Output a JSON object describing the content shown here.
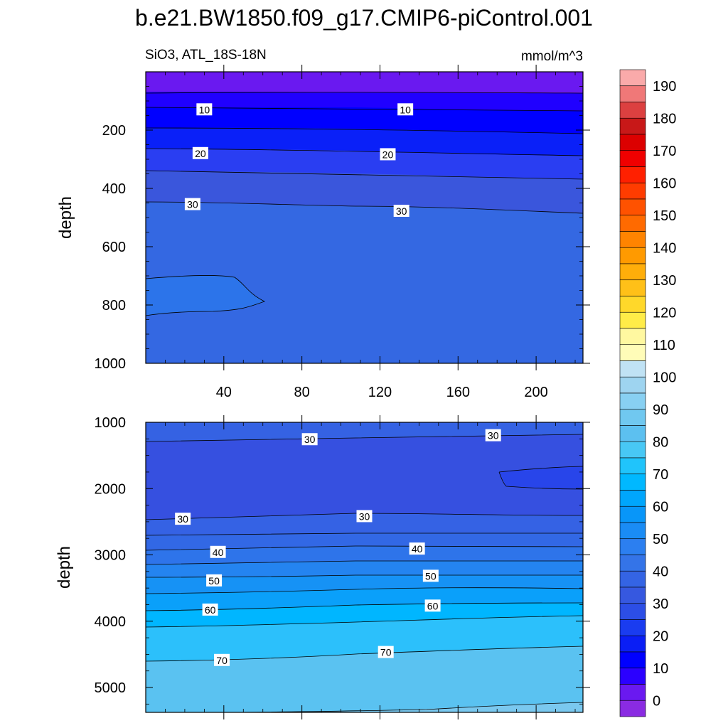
{
  "title": "b.e21.BW1850.f09_g17.CMIP6-piControl.001",
  "chart_data": [
    {
      "type": "contour",
      "panel": "upper",
      "left_label": "SiO3, ATL_18S-18N",
      "right_label": "mmol/m^3",
      "xlabel": "",
      "ylabel": "depth",
      "xlim": [
        0,
        224
      ],
      "ylim": [
        0,
        1000
      ],
      "y_reversed": true,
      "x_ticks": [
        40,
        80,
        120,
        160,
        200
      ],
      "x_tick_labels": [
        "40",
        "80",
        "120",
        "160",
        "200"
      ],
      "y_ticks": [
        200,
        400,
        600,
        800,
        1000
      ],
      "y_tick_labels": [
        "200",
        "400",
        "600",
        "800",
        "1000"
      ],
      "contour_labels": [
        {
          "text": "10",
          "x": 30,
          "y": 130
        },
        {
          "text": "10",
          "x": 133,
          "y": 130
        },
        {
          "text": "20",
          "x": 28,
          "y": 280
        },
        {
          "text": "20",
          "x": 124,
          "y": 284
        },
        {
          "text": "30",
          "x": 24,
          "y": 455
        },
        {
          "text": "30",
          "x": 131,
          "y": 478
        }
      ]
    },
    {
      "type": "contour",
      "panel": "lower",
      "xlabel": "",
      "ylabel": "depth",
      "xlim": [
        0,
        224
      ],
      "ylim": [
        1000,
        5375
      ],
      "y_reversed": true,
      "y_ticks": [
        1000,
        2000,
        3000,
        4000,
        5000
      ],
      "y_tick_labels": [
        "1000",
        "2000",
        "3000",
        "4000",
        "5000"
      ],
      "contour_labels": [
        {
          "text": "30",
          "x": 84,
          "y": 1260
        },
        {
          "text": "30",
          "x": 178,
          "y": 1200
        },
        {
          "text": "30",
          "x": 19,
          "y": 2460
        },
        {
          "text": "30",
          "x": 112,
          "y": 2420
        },
        {
          "text": "40",
          "x": 37,
          "y": 2960
        },
        {
          "text": "40",
          "x": 139,
          "y": 2910
        },
        {
          "text": "50",
          "x": 35,
          "y": 3390
        },
        {
          "text": "50",
          "x": 146,
          "y": 3320
        },
        {
          "text": "60",
          "x": 33,
          "y": 3830
        },
        {
          "text": "60",
          "x": 147,
          "y": 3770
        },
        {
          "text": "70",
          "x": 39,
          "y": 4590
        },
        {
          "text": "70",
          "x": 123,
          "y": 4470
        }
      ]
    }
  ],
  "colorbar": {
    "labels": [
      "0",
      "10",
      "20",
      "30",
      "40",
      "50",
      "60",
      "70",
      "80",
      "90",
      "100",
      "110",
      "120",
      "130",
      "140",
      "150",
      "160",
      "170",
      "180",
      "190"
    ],
    "colors": [
      "#8a2be2",
      "#6a19f0",
      "#2b00ff",
      "#0000ff",
      "#0a1ef5",
      "#1a3cf0",
      "#2c4ee6",
      "#3658e0",
      "#3464e4",
      "#3474e8",
      "#2c7ff0",
      "#1a8cf5",
      "#0896f9",
      "#00a6fc",
      "#00b8ff",
      "#20c4fb",
      "#48c8f5",
      "#5cc0f0",
      "#70c8f0",
      "#88d0f2",
      "#9ed4f0",
      "#c0e2f4",
      "#fffcb8",
      "#fff8a0",
      "#ffec48",
      "#ffd82a",
      "#ffc018",
      "#ffae0a",
      "#ff9a00",
      "#ff8400",
      "#ff6a00",
      "#ff5200",
      "#ff3c00",
      "#ff2000",
      "#f00000",
      "#dc0000",
      "#c81818",
      "#dc4040",
      "#f07878",
      "#faaaaa"
    ]
  },
  "colors": {
    "l0_20": "#6a1cf5",
    "l10_15": "#2a00f8",
    "l15_20": "#0000ff",
    "l20_25": "#0a18f5",
    "l25_30": "#2a42e8",
    "l30_35": "#3656e0",
    "l35_40": "#3268e5",
    "l40_45": "#2e74ea",
    "l45_50": "#2484f0",
    "l50_55": "#1692f5",
    "l55_60": "#0aa0fa",
    "l60_65": "#00b6ff",
    "l65_70": "#2cc0fb",
    "l70_75": "#5ac2f1",
    "l75_80": "#7ac8ef",
    "bg_upper": "#3468e2",
    "lower_pocket": "#2845ea"
  }
}
